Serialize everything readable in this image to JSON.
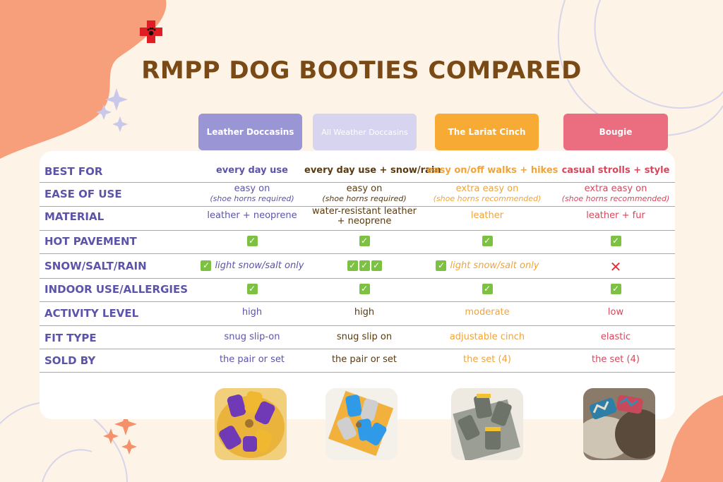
{
  "title": "RMPP DOG BOOTIES COMPARED",
  "products": [
    {
      "name": "Leather Doccasins",
      "color": "#9a96d6",
      "text_color": "#5b54a8"
    },
    {
      "name": "All Weather Doccasins",
      "color": "#d6d4ee",
      "text_color": "#5a3a10"
    },
    {
      "name": "The Lariat Cinch",
      "color": "#f7aa34",
      "text_color": "#f0a43a"
    },
    {
      "name": "Bougie",
      "color": "#ea6d80",
      "text_color": "#d6475c"
    }
  ],
  "rows": [
    {
      "label": "BEST FOR",
      "cells": [
        {
          "text": "every day use"
        },
        {
          "text": "every day use + snow/rain"
        },
        {
          "text": "easy on/off walks + hikes"
        },
        {
          "text": "casual strolls + style"
        }
      ]
    },
    {
      "label": "EASE OF USE",
      "cells": [
        {
          "text": "easy on",
          "sub": "(shoe horns required)"
        },
        {
          "text": "easy on",
          "sub": "(shoe horns required)"
        },
        {
          "text": "extra easy on",
          "sub": "(shoe horns recommended)"
        },
        {
          "text": "extra easy on",
          "sub": "(shoe horns recommended)"
        }
      ]
    },
    {
      "label": "MATERIAL",
      "cells": [
        {
          "text": "leather + neoprene"
        },
        {
          "text": "water-resistant leather",
          "text2": "+ neoprene"
        },
        {
          "text": "leather"
        },
        {
          "text": "leather + fur"
        }
      ]
    },
    {
      "label": "HOT PAVEMENT",
      "cells": [
        {
          "checks": 1
        },
        {
          "checks": 1
        },
        {
          "checks": 1
        },
        {
          "checks": 1
        }
      ]
    },
    {
      "label": "SNOW/SALT/RAIN",
      "cells": [
        {
          "checks": 1,
          "note": "light snow/salt only"
        },
        {
          "checks": 3
        },
        {
          "checks": 1,
          "note": "light snow/salt only"
        },
        {
          "cross": "✕"
        }
      ]
    },
    {
      "label": "INDOOR USE/ALLERGIES",
      "cells": [
        {
          "checks": 1
        },
        {
          "checks": 1
        },
        {
          "checks": 1
        },
        {
          "checks": 1
        }
      ]
    },
    {
      "label": "ACTIVITY LEVEL",
      "cells": [
        {
          "text": "high"
        },
        {
          "text": "high"
        },
        {
          "text": "moderate"
        },
        {
          "text": "low"
        }
      ]
    },
    {
      "label": "FIT TYPE",
      "cells": [
        {
          "text": "snug slip-on"
        },
        {
          "text": "snug slip on"
        },
        {
          "text": "adjustable cinch"
        },
        {
          "text": "elastic"
        }
      ]
    },
    {
      "label": "SOLD BY",
      "cells": [
        {
          "text": "the pair or set"
        },
        {
          "text": "the pair or set"
        },
        {
          "text": "the set (4)"
        },
        {
          "text": "the set (4)"
        }
      ]
    }
  ],
  "images": [
    {
      "name": "leather-doccasins-photo"
    },
    {
      "name": "all-weather-doccasins-photo"
    },
    {
      "name": "lariat-cinch-photo"
    },
    {
      "name": "bougie-photo"
    }
  ],
  "logo_icon": "red-cross-paw-icon"
}
